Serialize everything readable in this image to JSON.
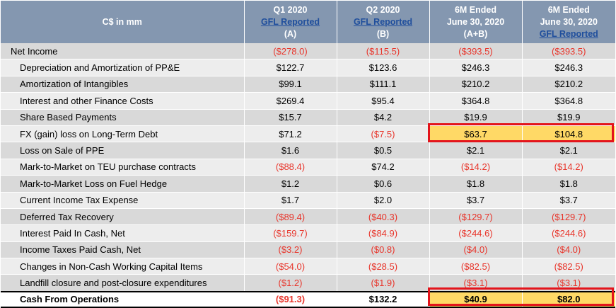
{
  "header": {
    "label": "C$ in mm",
    "columns": [
      {
        "line1": "Q1 2020",
        "link": "GFL Reported",
        "line3": "(A)"
      },
      {
        "line1": "Q2 2020",
        "link": "GFL Reported",
        "line3": "(B)"
      },
      {
        "line1": "6M Ended",
        "line2": "June 30, 2020",
        "line3": "(A+B)"
      },
      {
        "line1": "6M Ended",
        "line2": "June 30, 2020",
        "link": "GFL Reported"
      }
    ]
  },
  "rows": [
    {
      "label": "Net Income",
      "values": [
        "($278.0)",
        "($115.5)",
        "($393.5)",
        "($393.5)"
      ]
    },
    {
      "label": "Depreciation and Amortization of PP&E",
      "values": [
        "$122.7",
        "$123.6",
        "$246.3",
        "$246.3"
      ]
    },
    {
      "label": "Amortization of Intangibles",
      "values": [
        "$99.1",
        "$111.1",
        "$210.2",
        "$210.2"
      ]
    },
    {
      "label": "Interest and other Finance Costs",
      "values": [
        "$269.4",
        "$95.4",
        "$364.8",
        "$364.8"
      ]
    },
    {
      "label": "Share Based Payments",
      "values": [
        "$15.7",
        "$4.2",
        "$19.9",
        "$19.9"
      ]
    },
    {
      "label": "FX (gain) loss on Long-Term Debt",
      "values": [
        "$71.2",
        "($7.5)",
        "$63.7",
        "$104.8"
      ]
    },
    {
      "label": "Loss on Sale of PPE",
      "values": [
        "$1.6",
        "$0.5",
        "$2.1",
        "$2.1"
      ]
    },
    {
      "label": "Mark-to-Market on TEU purchase contracts",
      "values": [
        "($88.4)",
        "$74.2",
        "($14.2)",
        "($14.2)"
      ]
    },
    {
      "label": "Mark-to-Market Loss on Fuel Hedge",
      "values": [
        "$1.2",
        "$0.6",
        "$1.8",
        "$1.8"
      ]
    },
    {
      "label": "Current Income Tax Expense",
      "values": [
        "$1.7",
        "$2.0",
        "$3.7",
        "$3.7"
      ]
    },
    {
      "label": "Deferred Tax Recovery",
      "values": [
        "($89.4)",
        "($40.3)",
        "($129.7)",
        "($129.7)"
      ]
    },
    {
      "label": "Interest Paid In Cash, Net",
      "values": [
        "($159.7)",
        "($84.9)",
        "($244.6)",
        "($244.6)"
      ]
    },
    {
      "label": "Income Taxes Paid Cash, Net",
      "values": [
        "($3.2)",
        "($0.8)",
        "($4.0)",
        "($4.0)"
      ]
    },
    {
      "label": "Changes in Non-Cash Working Capital Items",
      "values": [
        "($54.0)",
        "($28.5)",
        "($82.5)",
        "($82.5)"
      ]
    },
    {
      "label": "Landfill closure and post-closure expenditures",
      "values": [
        "($1.2)",
        "($1.9)",
        "($3.1)",
        "($3.1)"
      ]
    }
  ],
  "total": {
    "label": "Cash From Operations",
    "values": [
      "($91.3)",
      "$132.2",
      "$40.9",
      "$82.0"
    ]
  },
  "colors": {
    "header_bg": "#8497b0",
    "negative": "#e8352b",
    "highlight": "#ffd966",
    "highlight_border": "#e3141b"
  }
}
